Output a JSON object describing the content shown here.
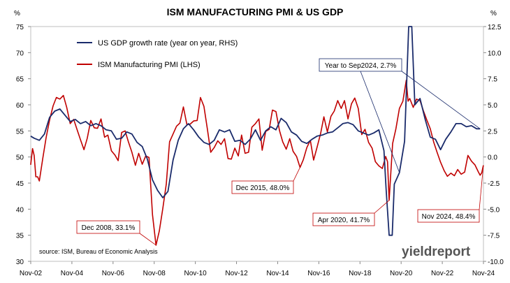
{
  "chart_data": {
    "type": "line",
    "title": "ISM MANUFACTURING PMI & US GDP",
    "left_unit": "%",
    "right_unit": "%",
    "x_ticks": [
      "Nov-02",
      "Nov-04",
      "Nov-06",
      "Nov-08",
      "Nov-10",
      "Nov-12",
      "Nov-14",
      "Nov-16",
      "Nov-18",
      "Nov-20",
      "Nov-22",
      "Nov-24"
    ],
    "x_range": [
      2002.833,
      2024.833
    ],
    "y_left": {
      "range": [
        30,
        75
      ],
      "ticks": [
        "30",
        "35",
        "40",
        "45",
        "50",
        "55",
        "60",
        "65",
        "70",
        "75"
      ]
    },
    "y_right": {
      "range": [
        -10,
        12.5
      ],
      "ticks": [
        "-10.0",
        "-7.5",
        "-5.0",
        "-2.5",
        "0.0",
        "2.5",
        "5.0",
        "7.5",
        "10.0",
        "12.5"
      ]
    },
    "grid": false,
    "legend_position": "top-left",
    "source": "source: ISM, Bureau of Economic Analysis",
    "logo": "yieldreport",
    "colors": {
      "gdp": "#1a2b6b",
      "pmi": "#c00000",
      "annotation_border": "#c00000",
      "gdp_annotation_border": "#1a2b6b"
    },
    "series": [
      {
        "name": "US GDP growth rate (year on year, RHS)",
        "axis": "right",
        "points": [
          [
            2002.83,
            2.0
          ],
          [
            2003.0,
            1.8
          ],
          [
            2003.25,
            1.6
          ],
          [
            2003.5,
            2.2
          ],
          [
            2003.75,
            3.8
          ],
          [
            2004.0,
            4.4
          ],
          [
            2004.25,
            4.6
          ],
          [
            2004.5,
            4.0
          ],
          [
            2004.75,
            3.4
          ],
          [
            2005.0,
            3.6
          ],
          [
            2005.25,
            3.2
          ],
          [
            2005.5,
            3.4
          ],
          [
            2005.75,
            3.0
          ],
          [
            2006.0,
            3.2
          ],
          [
            2006.25,
            3.0
          ],
          [
            2006.5,
            2.6
          ],
          [
            2006.75,
            2.5
          ],
          [
            2007.0,
            1.7
          ],
          [
            2007.25,
            1.8
          ],
          [
            2007.5,
            2.4
          ],
          [
            2007.75,
            2.2
          ],
          [
            2008.0,
            1.4
          ],
          [
            2008.25,
            1.0
          ],
          [
            2008.5,
            -0.2
          ],
          [
            2008.75,
            -2.2
          ],
          [
            2009.0,
            -3.2
          ],
          [
            2009.25,
            -3.9
          ],
          [
            2009.5,
            -3.3
          ],
          [
            2009.75,
            -0.3
          ],
          [
            2010.0,
            1.6
          ],
          [
            2010.25,
            2.7
          ],
          [
            2010.5,
            3.2
          ],
          [
            2010.75,
            2.6
          ],
          [
            2011.0,
            1.9
          ],
          [
            2011.25,
            1.4
          ],
          [
            2011.5,
            1.2
          ],
          [
            2011.75,
            1.6
          ],
          [
            2012.0,
            2.6
          ],
          [
            2012.25,
            2.4
          ],
          [
            2012.5,
            2.6
          ],
          [
            2012.75,
            1.5
          ],
          [
            2013.0,
            1.6
          ],
          [
            2013.25,
            1.2
          ],
          [
            2013.5,
            1.7
          ],
          [
            2013.75,
            2.6
          ],
          [
            2014.0,
            1.6
          ],
          [
            2014.25,
            2.5
          ],
          [
            2014.5,
            2.9
          ],
          [
            2014.75,
            2.6
          ],
          [
            2015.0,
            3.7
          ],
          [
            2015.25,
            3.3
          ],
          [
            2015.5,
            2.4
          ],
          [
            2015.75,
            2.1
          ],
          [
            2016.0,
            1.5
          ],
          [
            2016.25,
            1.3
          ],
          [
            2016.5,
            1.7
          ],
          [
            2016.75,
            2.0
          ],
          [
            2017.0,
            2.1
          ],
          [
            2017.25,
            2.3
          ],
          [
            2017.5,
            2.4
          ],
          [
            2017.75,
            2.8
          ],
          [
            2018.0,
            3.2
          ],
          [
            2018.25,
            3.3
          ],
          [
            2018.5,
            3.1
          ],
          [
            2018.75,
            2.5
          ],
          [
            2019.0,
            2.3
          ],
          [
            2019.25,
            2.1
          ],
          [
            2019.5,
            2.3
          ],
          [
            2019.75,
            2.6
          ],
          [
            2020.0,
            0.6
          ],
          [
            2020.1,
            -3.0
          ],
          [
            2020.25,
            -7.5
          ],
          [
            2020.4,
            -7.5
          ],
          [
            2020.5,
            -2.6
          ],
          [
            2020.75,
            -1.5
          ],
          [
            2021.0,
            1.5
          ],
          [
            2021.2,
            12.5
          ],
          [
            2021.35,
            12.5
          ],
          [
            2021.5,
            5.0
          ],
          [
            2021.75,
            5.6
          ],
          [
            2022.0,
            3.6
          ],
          [
            2022.25,
            1.9
          ],
          [
            2022.5,
            1.7
          ],
          [
            2022.75,
            0.7
          ],
          [
            2023.0,
            1.7
          ],
          [
            2023.25,
            2.4
          ],
          [
            2023.5,
            3.2
          ],
          [
            2023.75,
            3.2
          ],
          [
            2024.0,
            2.9
          ],
          [
            2024.25,
            3.0
          ],
          [
            2024.5,
            2.7
          ],
          [
            2024.67,
            2.7
          ]
        ]
      },
      {
        "name": "ISM Manufacturing PMI (LHS)",
        "axis": "left",
        "points": [
          [
            2002.83,
            48.5
          ],
          [
            2002.92,
            51.6
          ],
          [
            2003.0,
            50.3
          ],
          [
            2003.08,
            46.2
          ],
          [
            2003.17,
            46.2
          ],
          [
            2003.25,
            45.4
          ],
          [
            2003.42,
            49.8
          ],
          [
            2003.58,
            53.7
          ],
          [
            2003.75,
            57.1
          ],
          [
            2003.92,
            59.8
          ],
          [
            2004.08,
            61.4
          ],
          [
            2004.25,
            61.1
          ],
          [
            2004.42,
            61.8
          ],
          [
            2004.58,
            59.5
          ],
          [
            2004.75,
            56.4
          ],
          [
            2004.92,
            57.2
          ],
          [
            2005.08,
            55.3
          ],
          [
            2005.25,
            53.3
          ],
          [
            2005.42,
            51.4
          ],
          [
            2005.58,
            53.6
          ],
          [
            2005.75,
            57.0
          ],
          [
            2005.92,
            55.6
          ],
          [
            2006.08,
            55.5
          ],
          [
            2006.25,
            57.3
          ],
          [
            2006.42,
            53.8
          ],
          [
            2006.58,
            54.2
          ],
          [
            2006.75,
            51.2
          ],
          [
            2006.92,
            50.4
          ],
          [
            2007.08,
            49.3
          ],
          [
            2007.25,
            54.7
          ],
          [
            2007.42,
            55.0
          ],
          [
            2007.58,
            52.9
          ],
          [
            2007.75,
            50.9
          ],
          [
            2007.92,
            48.4
          ],
          [
            2008.08,
            50.7
          ],
          [
            2008.25,
            48.6
          ],
          [
            2008.42,
            50.2
          ],
          [
            2008.58,
            49.9
          ],
          [
            2008.75,
            38.9
          ],
          [
            2008.92,
            33.1
          ],
          [
            2009.08,
            35.8
          ],
          [
            2009.25,
            40.1
          ],
          [
            2009.42,
            44.8
          ],
          [
            2009.58,
            52.9
          ],
          [
            2009.75,
            54.4
          ],
          [
            2009.92,
            55.9
          ],
          [
            2010.08,
            56.5
          ],
          [
            2010.25,
            59.6
          ],
          [
            2010.42,
            56.2
          ],
          [
            2010.58,
            56.3
          ],
          [
            2010.75,
            56.9
          ],
          [
            2010.92,
            57.0
          ],
          [
            2011.08,
            61.4
          ],
          [
            2011.25,
            59.7
          ],
          [
            2011.42,
            55.3
          ],
          [
            2011.58,
            50.9
          ],
          [
            2011.75,
            51.8
          ],
          [
            2011.92,
            53.1
          ],
          [
            2012.08,
            52.4
          ],
          [
            2012.25,
            53.5
          ],
          [
            2012.42,
            49.7
          ],
          [
            2012.58,
            49.6
          ],
          [
            2012.75,
            51.7
          ],
          [
            2012.92,
            50.2
          ],
          [
            2013.08,
            54.2
          ],
          [
            2013.25,
            50.7
          ],
          [
            2013.42,
            50.9
          ],
          [
            2013.58,
            55.7
          ],
          [
            2013.75,
            56.4
          ],
          [
            2013.92,
            57.3
          ],
          [
            2014.08,
            51.3
          ],
          [
            2014.25,
            54.9
          ],
          [
            2014.42,
            55.3
          ],
          [
            2014.58,
            59.0
          ],
          [
            2014.75,
            58.7
          ],
          [
            2014.92,
            55.1
          ],
          [
            2015.08,
            52.9
          ],
          [
            2015.25,
            51.5
          ],
          [
            2015.42,
            53.5
          ],
          [
            2015.58,
            51.1
          ],
          [
            2015.75,
            50.1
          ],
          [
            2015.92,
            48.0
          ],
          [
            2016.08,
            49.5
          ],
          [
            2016.25,
            51.8
          ],
          [
            2016.42,
            53.2
          ],
          [
            2016.58,
            49.4
          ],
          [
            2016.75,
            51.9
          ],
          [
            2016.92,
            54.5
          ],
          [
            2017.08,
            57.7
          ],
          [
            2017.25,
            54.8
          ],
          [
            2017.42,
            57.8
          ],
          [
            2017.58,
            58.8
          ],
          [
            2017.75,
            60.8
          ],
          [
            2017.92,
            59.3
          ],
          [
            2018.08,
            60.8
          ],
          [
            2018.25,
            57.3
          ],
          [
            2018.42,
            60.2
          ],
          [
            2018.58,
            61.3
          ],
          [
            2018.75,
            59.3
          ],
          [
            2018.92,
            54.3
          ],
          [
            2019.08,
            55.3
          ],
          [
            2019.25,
            52.8
          ],
          [
            2019.42,
            51.7
          ],
          [
            2019.58,
            49.1
          ],
          [
            2019.75,
            48.3
          ],
          [
            2019.92,
            47.8
          ],
          [
            2020.08,
            50.1
          ],
          [
            2020.17,
            49.1
          ],
          [
            2020.25,
            41.7
          ],
          [
            2020.42,
            52.6
          ],
          [
            2020.58,
            55.4
          ],
          [
            2020.75,
            59.3
          ],
          [
            2020.92,
            60.7
          ],
          [
            2021.08,
            64.7
          ],
          [
            2021.17,
            60.7
          ],
          [
            2021.25,
            61.2
          ],
          [
            2021.42,
            59.5
          ],
          [
            2021.58,
            61.1
          ],
          [
            2021.75,
            60.8
          ],
          [
            2021.92,
            58.8
          ],
          [
            2022.08,
            57.1
          ],
          [
            2022.25,
            55.4
          ],
          [
            2022.42,
            52.8
          ],
          [
            2022.58,
            50.9
          ],
          [
            2022.75,
            49.0
          ],
          [
            2022.92,
            47.4
          ],
          [
            2023.08,
            46.3
          ],
          [
            2023.25,
            46.9
          ],
          [
            2023.42,
            46.4
          ],
          [
            2023.58,
            47.6
          ],
          [
            2023.75,
            46.7
          ],
          [
            2023.92,
            47.1
          ],
          [
            2024.08,
            50.3
          ],
          [
            2024.25,
            49.2
          ],
          [
            2024.42,
            48.5
          ],
          [
            2024.58,
            47.2
          ],
          [
            2024.67,
            46.5
          ],
          [
            2024.75,
            47.0
          ],
          [
            2024.83,
            48.4
          ]
        ]
      }
    ],
    "annotations": [
      {
        "text": "Year to Sep2024, 2.7%",
        "series": "gdp",
        "target": [
          2024.67,
          2.7
        ],
        "extra_targets": [
          [
            2020.75,
            -1.5
          ]
        ]
      },
      {
        "text": "Dec 2015, 48.0%",
        "series": "pmi",
        "target": [
          2015.92,
          48.0
        ]
      },
      {
        "text": "Dec 2008, 33.1%",
        "series": "pmi",
        "target": [
          2008.92,
          33.1
        ]
      },
      {
        "text": "Apr 2020, 41.7%",
        "series": "pmi",
        "target": [
          2020.25,
          41.7
        ]
      },
      {
        "text": "Nov 2024, 48.4%",
        "series": "pmi",
        "target": [
          2024.83,
          48.4
        ]
      }
    ]
  }
}
